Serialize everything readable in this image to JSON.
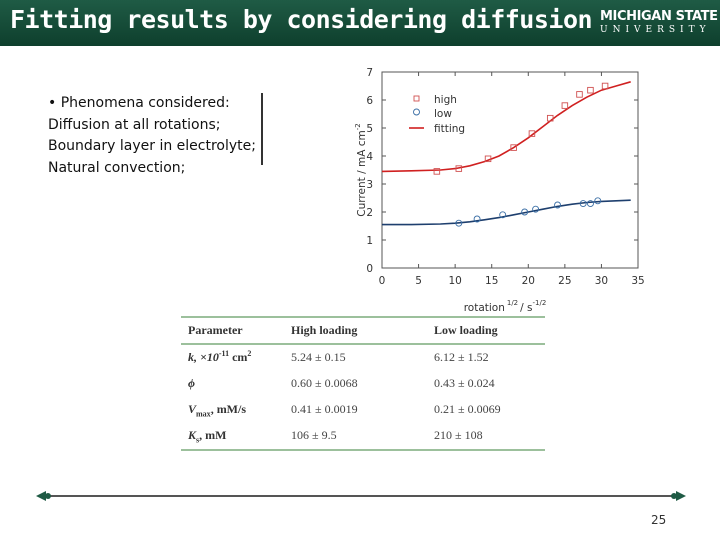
{
  "slide": {
    "title": "Fitting results by considering diffusion",
    "logo": {
      "line1": "MICHIGAN STATE",
      "line2": "UNIVERSITY"
    },
    "bullets": [
      "•   Phenomena considered:",
      "Diffusion at all rotations;",
      "Boundary layer in electrolyte;",
      "Natural convection;"
    ],
    "page_number": "25"
  },
  "chart_data": {
    "type": "scatter",
    "xlabel": "rotation",
    "xlabel_sup1": "1/2",
    "xlabel_mid": "/ s",
    "xlabel_sup2": "-1/2",
    "ylabel": "Current / mA cm",
    "ylabel_sup": "-2",
    "xlim": [
      0,
      35
    ],
    "ylim": [
      0,
      7
    ],
    "xticks": [
      0,
      5,
      10,
      15,
      20,
      25,
      30,
      35
    ],
    "yticks": [
      0,
      1,
      2,
      3,
      4,
      5,
      6,
      7
    ],
    "legend_position": "top-left",
    "series": [
      {
        "name": "high",
        "marker": "square",
        "color": "#d05050",
        "x": [
          7.5,
          10.5,
          14.5,
          18.0,
          20.5,
          23.0,
          25.0,
          27.0,
          28.5,
          30.5
        ],
        "y": [
          3.45,
          3.55,
          3.9,
          4.3,
          4.8,
          5.35,
          5.8,
          6.2,
          6.35,
          6.5
        ]
      },
      {
        "name": "low",
        "marker": "circle",
        "color": "#3a6ea5",
        "x": [
          10.5,
          13.0,
          16.5,
          19.5,
          21.0,
          24.0,
          27.5,
          28.5,
          29.5
        ],
        "y": [
          1.6,
          1.75,
          1.9,
          2.0,
          2.1,
          2.25,
          2.3,
          2.3,
          2.4
        ]
      }
    ],
    "fits": [
      {
        "name": "fitting",
        "color": "#d02020",
        "x": [
          0,
          4,
          8,
          10,
          12,
          14,
          16,
          18,
          20,
          22,
          24,
          26,
          28,
          30,
          32,
          34
        ],
        "y": [
          3.45,
          3.47,
          3.5,
          3.55,
          3.65,
          3.8,
          4.0,
          4.3,
          4.65,
          5.05,
          5.45,
          5.8,
          6.1,
          6.35,
          6.5,
          6.65
        ]
      },
      {
        "name": "",
        "color": "#1e3f6e",
        "x": [
          0,
          4,
          8,
          10,
          12,
          14,
          16,
          18,
          20,
          22,
          24,
          26,
          28,
          30,
          32,
          34
        ],
        "y": [
          1.55,
          1.55,
          1.57,
          1.6,
          1.65,
          1.72,
          1.8,
          1.9,
          2.0,
          2.1,
          2.2,
          2.28,
          2.34,
          2.38,
          2.4,
          2.42
        ]
      }
    ]
  },
  "table": {
    "headers": [
      "Parameter",
      "High loading",
      "Low loading"
    ],
    "rows": [
      {
        "param": "k, ×10",
        "param_sup": "-11",
        "param_rest": " cm",
        "param_sup2": "2",
        "high": "5.24 ± 0.15",
        "low": "6.12 ± 1.52"
      },
      {
        "param": "ϕ",
        "high": "0.60 ± 0.0068",
        "low": "0.43 ± 0.024"
      },
      {
        "param": "V",
        "param_sub": "max",
        "param_rest": ", mM/s",
        "high": "0.41 ± 0.0019",
        "low": "0.21 ± 0.0069"
      },
      {
        "param": "K",
        "param_sub": "s",
        "param_rest": ", mM",
        "high": "106 ± 9.5",
        "low": "210 ± 108"
      }
    ]
  }
}
